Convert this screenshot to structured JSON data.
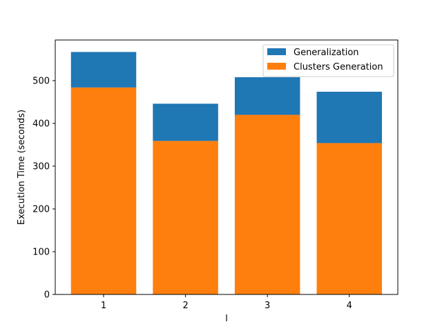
{
  "chart_data": {
    "type": "bar",
    "stacked": true,
    "categories": [
      "1",
      "2",
      "3",
      "4"
    ],
    "series": [
      {
        "name": "Clusters Generation",
        "values": [
          484,
          359,
          420,
          354
        ],
        "color": "#ff7f0e"
      },
      {
        "name": "Generalization",
        "values": [
          83,
          87,
          88,
          120
        ],
        "color": "#1f77b4"
      }
    ],
    "xlabel": "l",
    "ylabel": "Execution Time (seconds)",
    "ylim": [
      0,
      595
    ],
    "yticks": [
      0,
      100,
      200,
      300,
      400,
      500
    ],
    "grid": false,
    "legend": {
      "position": "top-right",
      "entries": [
        {
          "label": "Generalization",
          "color": "#1f77b4"
        },
        {
          "label": "Clusters Generation",
          "color": "#ff7f0e"
        }
      ]
    }
  }
}
